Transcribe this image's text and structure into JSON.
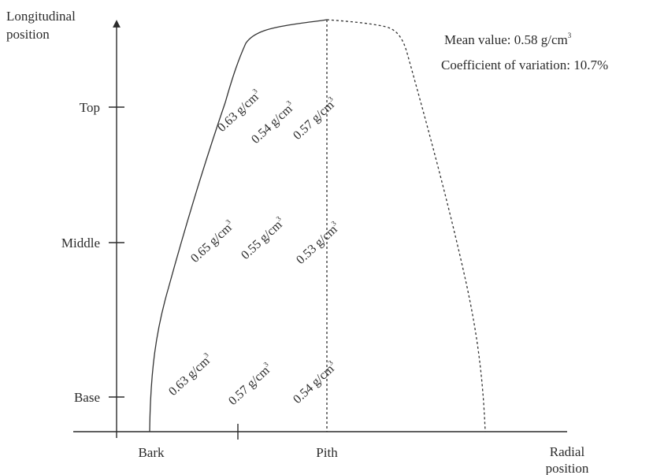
{
  "axes": {
    "y_title_line1": "Longitudinal",
    "y_title_line2": "position",
    "x_title_line1": "Radial",
    "x_title_line2": "position",
    "y_ticks": [
      "Top",
      "Middle",
      "Base"
    ],
    "x_ticks": [
      "Bark",
      "Pith"
    ]
  },
  "stats": {
    "mean_label": "Mean value: 0.58 g/cm",
    "mean_exponent": "3",
    "cv_label": "Coefficient of variation: 10.7%"
  },
  "density_unit": "g/cm",
  "density_exponent": "3",
  "densities": {
    "top": [
      "0.63",
      "0.54",
      "0.57"
    ],
    "middle": [
      "0.65",
      "0.55",
      "0.53"
    ],
    "base": [
      "0.63",
      "0.57",
      "0.54"
    ]
  }
}
